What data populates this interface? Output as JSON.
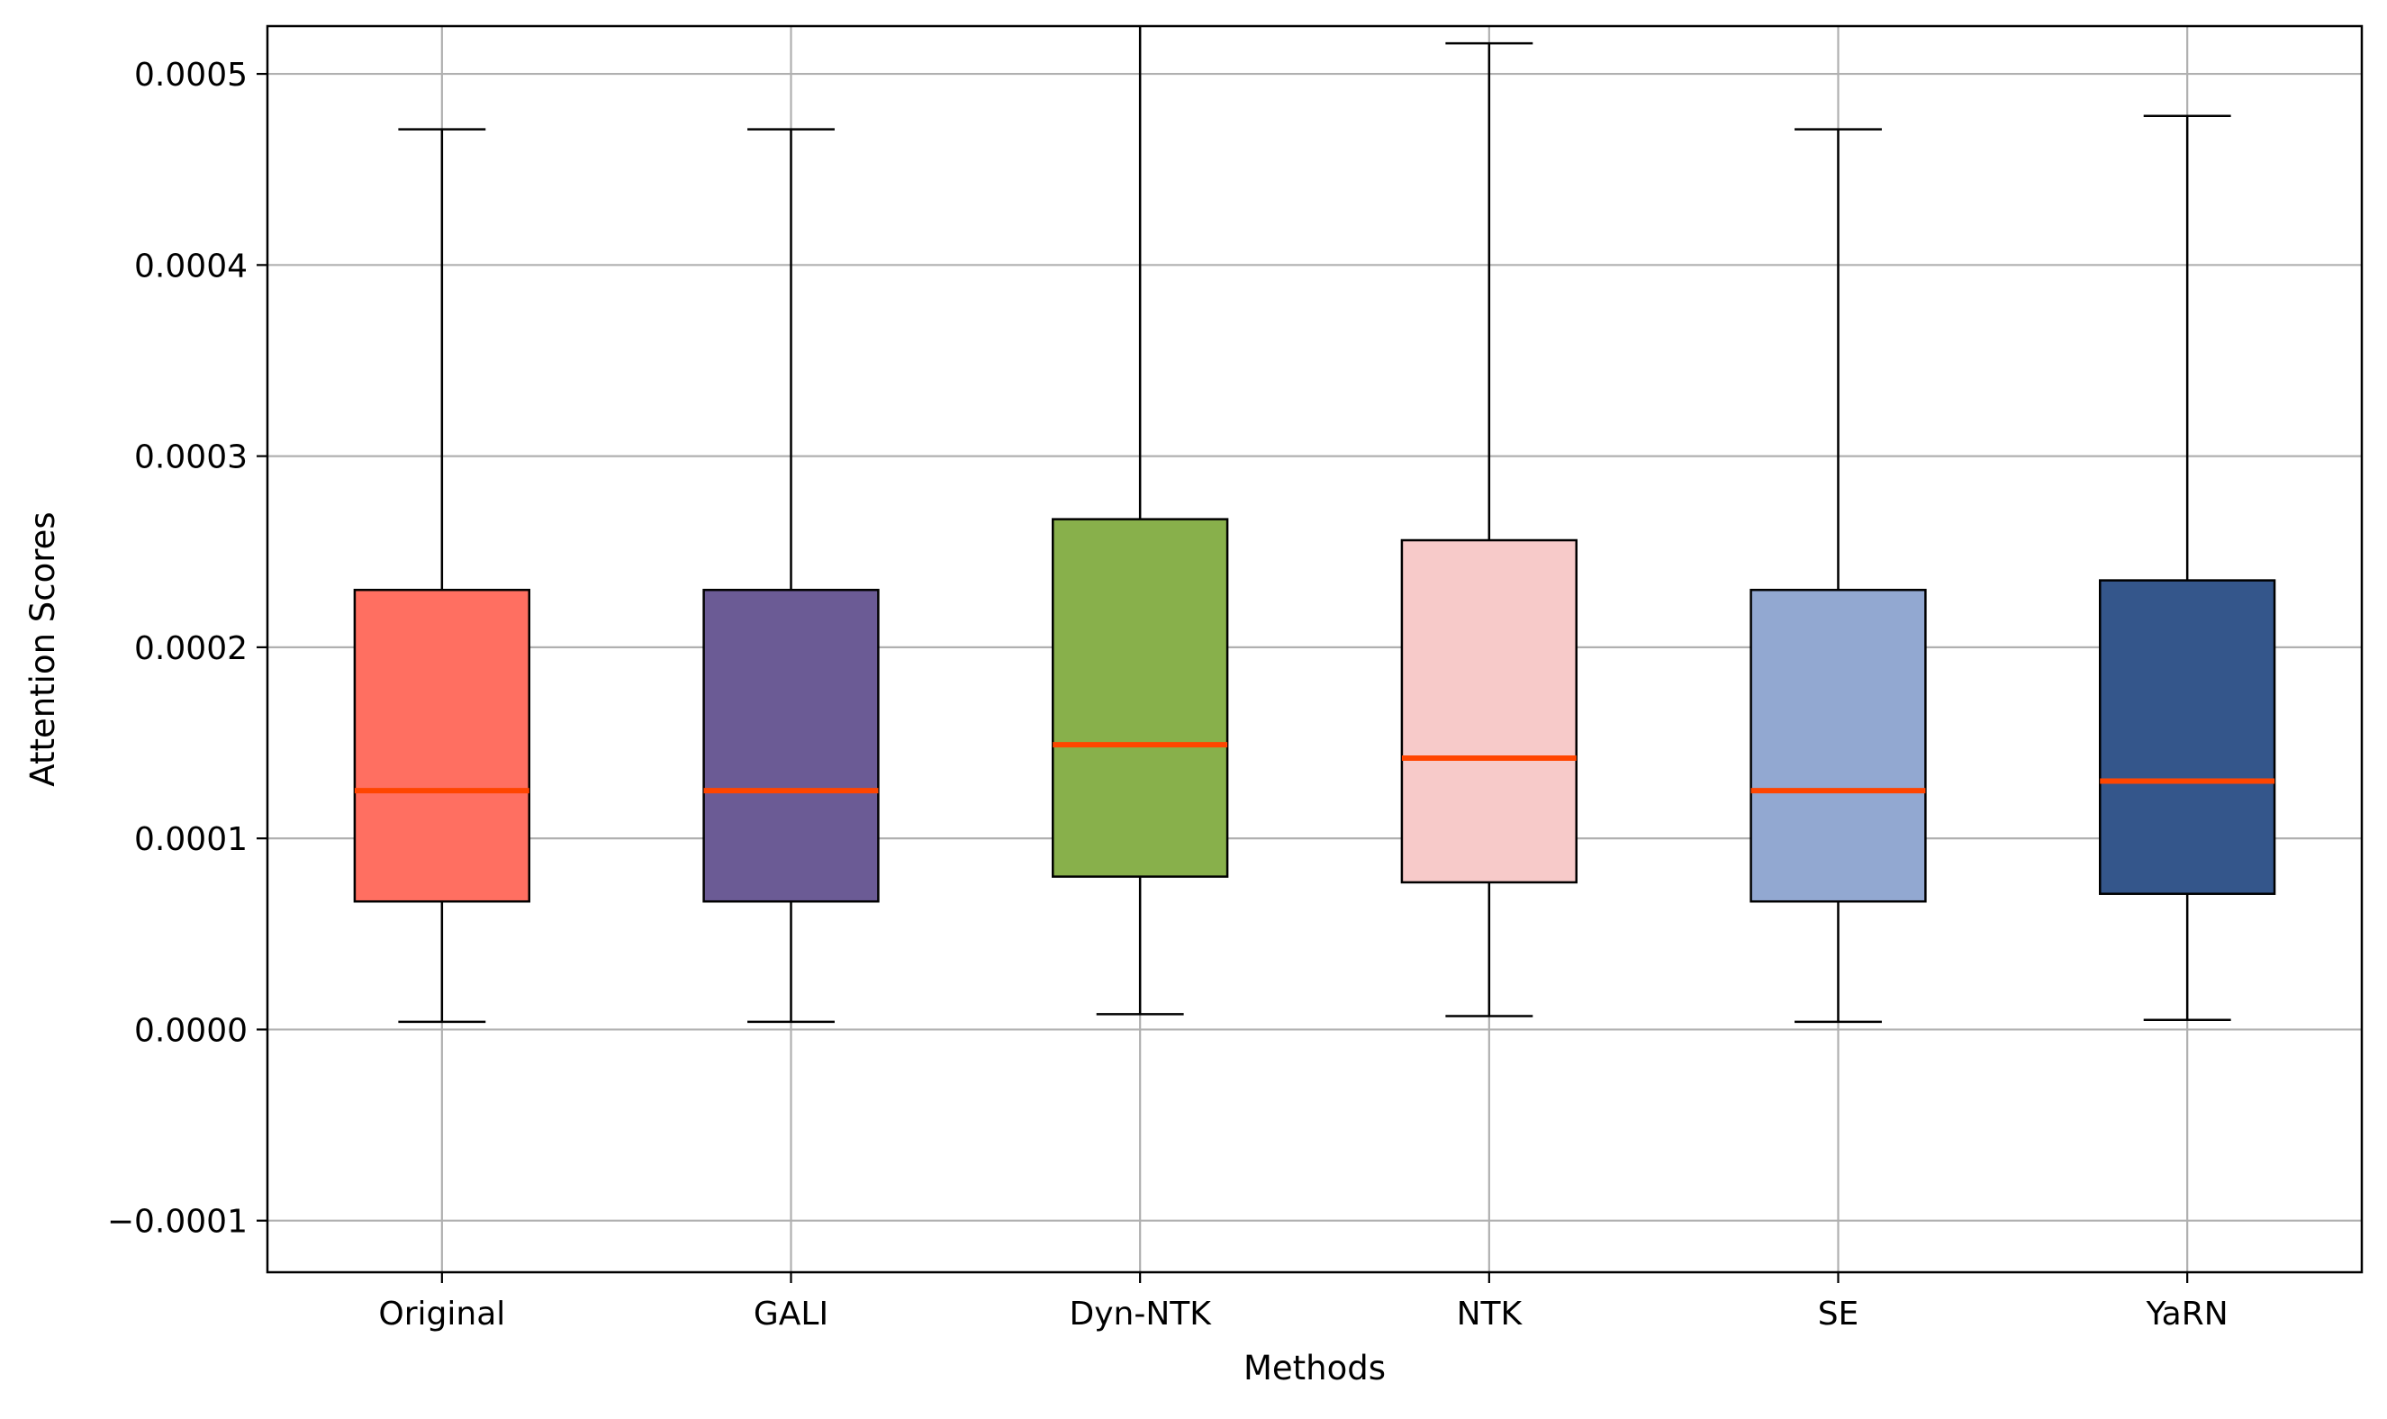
{
  "chart_data": {
    "type": "boxplot",
    "xlabel": "Methods",
    "ylabel": "Attention Scores",
    "ylim": [
      -0.000127,
      0.000525
    ],
    "yticks": [
      -0.0001,
      0.0,
      0.0001,
      0.0002,
      0.0003,
      0.0004,
      0.0005
    ],
    "ytick_labels": [
      "−0.0001",
      "0.0000",
      "0.0001",
      "0.0002",
      "0.0003",
      "0.0004",
      "0.0005"
    ],
    "grid": true,
    "median_color": "#ff4500",
    "categories": [
      "Original",
      "GALI",
      "Dyn-NTK",
      "NTK",
      "SE",
      "YaRN"
    ],
    "boxes": [
      {
        "label": "Original",
        "whisker_low": 4e-06,
        "q1": 6.7e-05,
        "median": 0.000125,
        "q3": 0.00023,
        "whisker_high": 0.000471,
        "color": "#ff6f61"
      },
      {
        "label": "GALI",
        "whisker_low": 4e-06,
        "q1": 6.7e-05,
        "median": 0.000125,
        "q3": 0.00023,
        "whisker_high": 0.000471,
        "color": "#6b5b95"
      },
      {
        "label": "Dyn-NTK",
        "whisker_low": 8e-06,
        "q1": 8e-05,
        "median": 0.000149,
        "q3": 0.000267,
        "whisker_high": 0.00054,
        "color": "#88b04b"
      },
      {
        "label": "NTK",
        "whisker_low": 7e-06,
        "q1": 7.7e-05,
        "median": 0.000142,
        "q3": 0.000256,
        "whisker_high": 0.000516,
        "color": "#f7cac9"
      },
      {
        "label": "SE",
        "whisker_low": 4e-06,
        "q1": 6.7e-05,
        "median": 0.000125,
        "q3": 0.00023,
        "whisker_high": 0.000471,
        "color": "#92a8d1"
      },
      {
        "label": "YaRN",
        "whisker_low": 5e-06,
        "q1": 7.1e-05,
        "median": 0.00013,
        "q3": 0.000235,
        "whisker_high": 0.000478,
        "color": "#34568b"
      }
    ]
  }
}
